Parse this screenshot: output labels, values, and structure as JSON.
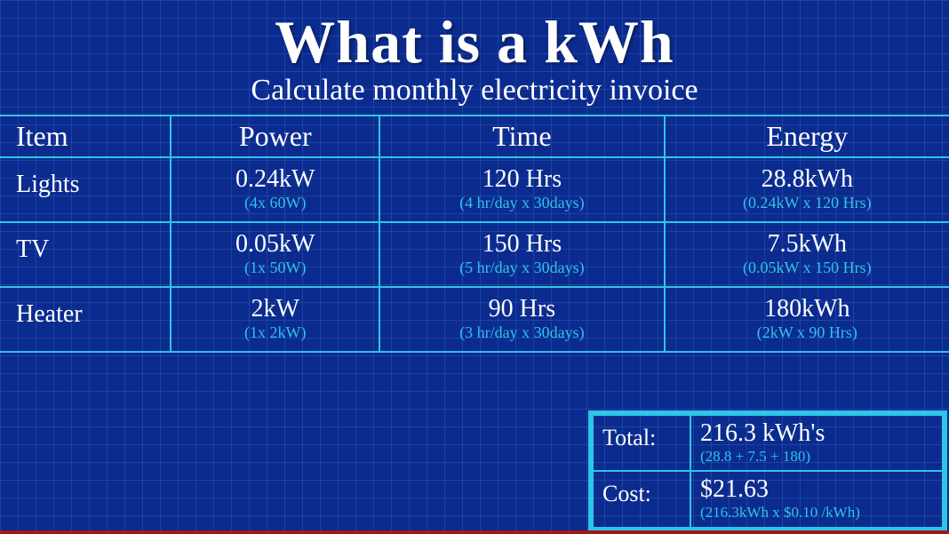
{
  "title": "What is a kWh",
  "subtitle": "Calculate monthly electricity invoice",
  "columns": [
    "Item",
    "Power",
    "Time",
    "Energy"
  ],
  "rows": [
    {
      "item": "Lights",
      "power": "0.24kW",
      "power_sub": "(4x 60W)",
      "time": "120 Hrs",
      "time_sub": "(4 hr/day x 30days)",
      "energy": "28.8kWh",
      "energy_sub": "(0.24kW x 120 Hrs)"
    },
    {
      "item": "TV",
      "power": "0.05kW",
      "power_sub": "(1x 50W)",
      "time": "150 Hrs",
      "time_sub": "(5 hr/day x 30days)",
      "energy": "7.5kWh",
      "energy_sub": "(0.05kW x 150 Hrs)"
    },
    {
      "item": "Heater",
      "power": "2kW",
      "power_sub": "(1x 2kW)",
      "time": "90 Hrs",
      "time_sub": "(3 hr/day x 30days)",
      "energy": "180kWh",
      "energy_sub": "(2kW x 90 Hrs)"
    }
  ],
  "summary": {
    "total_label": "Total:",
    "total_value": "216.3 kWh's",
    "total_sub": "(28.8 + 7.5 + 180)",
    "cost_label": "Cost:",
    "cost_value": "$21.63",
    "cost_sub": "(216.3kWh x $0.10 /kWh)"
  },
  "colors": {
    "background": "#0b2b8f",
    "grid": "#3a5fc0",
    "border": "#2fc4e8",
    "text_main": "#ffffff",
    "text_sub": "#2fc4e8",
    "bottom_bar": "#a01818"
  },
  "typography": {
    "family": "Comic Sans MS",
    "title_size": 68,
    "subtitle_size": 34,
    "header_size": 32,
    "value_size": 28,
    "sub_size": 18
  }
}
